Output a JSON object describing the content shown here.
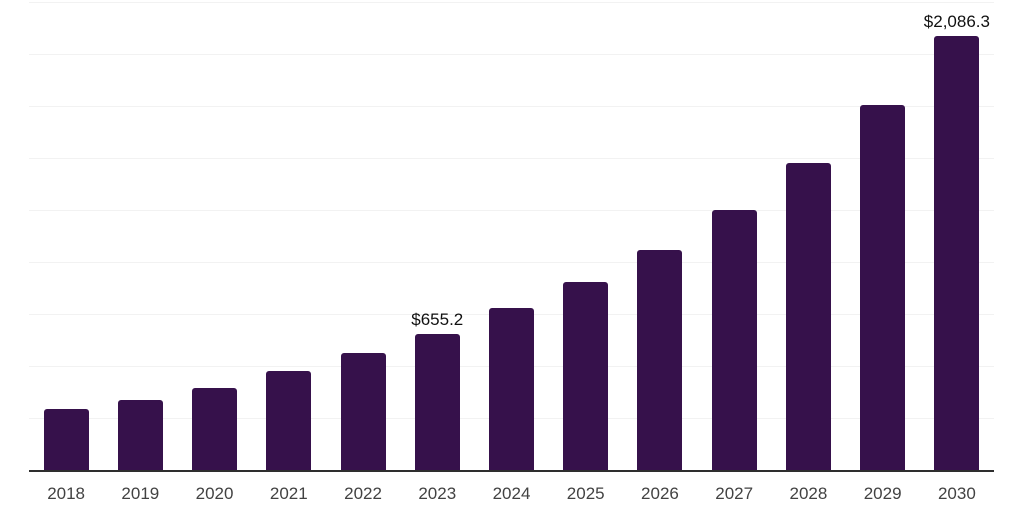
{
  "chart_data": {
    "type": "bar",
    "title": "",
    "xlabel": "",
    "ylabel": "",
    "categories": [
      "2018",
      "2019",
      "2020",
      "2021",
      "2022",
      "2023",
      "2024",
      "2025",
      "2026",
      "2027",
      "2028",
      "2029",
      "2030"
    ],
    "values": [
      291,
      336,
      396,
      474,
      564,
      655.2,
      779,
      902,
      1056,
      1250,
      1478,
      1757,
      2086.3
    ],
    "data_labels": [
      "",
      "",
      "",
      "",
      "",
      "$655.2",
      "",
      "",
      "",
      "",
      "",
      "",
      "$2,086.3"
    ],
    "ylim": [
      0,
      2250
    ],
    "gridline_step": 250,
    "grid": true,
    "legend": "none",
    "bar_color": "#36114B",
    "axis_color": "#2e2e2e",
    "gridline_color": "#f2f2f2",
    "value_label_color": "#111111",
    "tick_label_color": "#424242"
  }
}
